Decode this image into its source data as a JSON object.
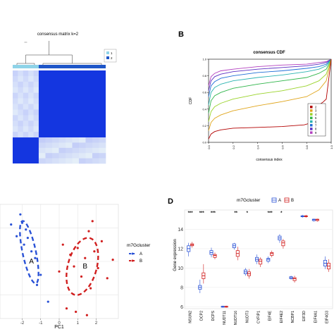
{
  "panels": {
    "b_label": "B",
    "d_label": "D"
  },
  "chart_data": [
    {
      "id": "A",
      "type": "heatmap",
      "title": "consensus matrix k=2",
      "legend": {
        "entries": [
          "1",
          "2"
        ],
        "colors": [
          "#8ed3e8",
          "#1e56c8"
        ],
        "placement": "top-right"
      },
      "clusters": [
        {
          "name": "1",
          "color": "#8ed3e8"
        },
        {
          "name": "2",
          "color": "#1e56c8"
        }
      ],
      "colors": {
        "high": "#1436e0",
        "low": "#ffffff",
        "mid": "#c9d3f0"
      }
    },
    {
      "id": "B",
      "type": "line",
      "title": "consensus CDF",
      "xlabel": "consensus index",
      "ylabel": "CDF",
      "xlim": [
        0,
        1
      ],
      "ylim": [
        0,
        1
      ],
      "x_ticks": [
        "0.0",
        "0.2",
        "0.4",
        "0.6",
        "0.8",
        "1.0"
      ],
      "y_ticks": [
        "0.0",
        "0.2",
        "0.4",
        "0.6",
        "0.8",
        "1.0"
      ],
      "legend": {
        "placement": "bottom-right"
      },
      "series": [
        {
          "name": "2",
          "color": "#b30000",
          "x": [
            0,
            0.02,
            0.05,
            0.1,
            0.2,
            0.4,
            0.6,
            0.78,
            0.85,
            0.88,
            0.9,
            0.93,
            0.96,
            1.0
          ],
          "y": [
            0.04,
            0.1,
            0.13,
            0.15,
            0.17,
            0.18,
            0.19,
            0.21,
            0.24,
            0.44,
            0.45,
            0.48,
            0.52,
            1.0
          ]
        },
        {
          "name": "3",
          "color": "#e0a51b",
          "x": [
            0,
            0.02,
            0.05,
            0.1,
            0.2,
            0.4,
            0.6,
            0.8,
            0.9,
            0.96,
            1.0
          ],
          "y": [
            0.14,
            0.24,
            0.29,
            0.33,
            0.38,
            0.44,
            0.49,
            0.55,
            0.63,
            0.74,
            1.0
          ]
        },
        {
          "name": "4",
          "color": "#9ad32a",
          "x": [
            0,
            0.02,
            0.05,
            0.1,
            0.2,
            0.4,
            0.6,
            0.8,
            0.9,
            0.96,
            1.0
          ],
          "y": [
            0.25,
            0.37,
            0.43,
            0.47,
            0.52,
            0.58,
            0.62,
            0.68,
            0.74,
            0.82,
            1.0
          ]
        },
        {
          "name": "5",
          "color": "#2fb54a",
          "x": [
            0,
            0.02,
            0.05,
            0.1,
            0.2,
            0.4,
            0.6,
            0.8,
            0.9,
            0.96,
            1.0
          ],
          "y": [
            0.35,
            0.5,
            0.56,
            0.6,
            0.65,
            0.7,
            0.74,
            0.78,
            0.83,
            0.88,
            1.0
          ]
        },
        {
          "name": "6",
          "color": "#2ab3b0",
          "x": [
            0,
            0.02,
            0.05,
            0.1,
            0.2,
            0.4,
            0.6,
            0.8,
            0.9,
            0.96,
            1.0
          ],
          "y": [
            0.45,
            0.6,
            0.66,
            0.7,
            0.74,
            0.78,
            0.81,
            0.85,
            0.88,
            0.92,
            1.0
          ]
        },
        {
          "name": "7",
          "color": "#1f6fd6",
          "x": [
            0,
            0.02,
            0.05,
            0.1,
            0.2,
            0.4,
            0.6,
            0.8,
            0.9,
            0.96,
            1.0
          ],
          "y": [
            0.55,
            0.68,
            0.73,
            0.77,
            0.8,
            0.84,
            0.86,
            0.89,
            0.91,
            0.94,
            1.0
          ]
        },
        {
          "name": "8",
          "color": "#5b2fc2",
          "x": [
            0,
            0.02,
            0.05,
            0.1,
            0.2,
            0.4,
            0.6,
            0.8,
            0.9,
            0.96,
            1.0
          ],
          "y": [
            0.62,
            0.74,
            0.79,
            0.82,
            0.85,
            0.88,
            0.9,
            0.92,
            0.94,
            0.96,
            1.0
          ]
        },
        {
          "name": "9",
          "color": "#b23fbf",
          "x": [
            0,
            0.02,
            0.05,
            0.1,
            0.2,
            0.4,
            0.6,
            0.8,
            0.9,
            0.96,
            1.0
          ],
          "y": [
            0.68,
            0.79,
            0.83,
            0.86,
            0.88,
            0.91,
            0.93,
            0.94,
            0.96,
            0.97,
            1.0
          ]
        }
      ]
    },
    {
      "id": "C",
      "type": "scatter",
      "xlabel": "PC1",
      "ylabel": "",
      "xlim": [
        -3.2,
        3.2
      ],
      "ylim": [
        -3.4,
        3.4
      ],
      "x_ticks": [
        -2,
        -1,
        0,
        1,
        2
      ],
      "legend": {
        "title": "m7Gcluster",
        "placement": "right"
      },
      "series": [
        {
          "name": "A",
          "color": "#2a52d6",
          "points": [
            [
              -2.6,
              2.2
            ],
            [
              -2.1,
              2.8
            ],
            [
              -2.3,
              1.5
            ],
            [
              -1.8,
              1.9
            ],
            [
              -1.9,
              1.0
            ],
            [
              -1.5,
              0.6
            ],
            [
              -1.3,
              0.2
            ],
            [
              -1.0,
              -0.8
            ],
            [
              -1.2,
              -1.4
            ],
            [
              -0.6,
              -2.4
            ],
            [
              -2.0,
              2.3
            ],
            [
              -1.7,
              1.4
            ]
          ],
          "ellipse": {
            "cx": -1.62,
            "cy": 0.55,
            "rx": 0.36,
            "ry": 1.9,
            "angle": -12
          },
          "centroid": [
            -1.5,
            0.0
          ]
        },
        {
          "name": "B",
          "color": "#d11f1f",
          "points": [
            [
              0.2,
              1.0
            ],
            [
              0.6,
              0.4
            ],
            [
              0.8,
              -0.3
            ],
            [
              1.0,
              0.8
            ],
            [
              1.2,
              -0.9
            ],
            [
              1.4,
              0.2
            ],
            [
              1.6,
              1.8
            ],
            [
              1.7,
              -1.6
            ],
            [
              1.9,
              0.6
            ],
            [
              2.1,
              -0.4
            ],
            [
              2.3,
              1.2
            ],
            [
              2.6,
              -1.0
            ],
            [
              0.4,
              -2.8
            ],
            [
              2.9,
              0.1
            ],
            [
              0.9,
              -3.0
            ],
            [
              1.5,
              -3.2
            ],
            [
              0.0,
              -0.6
            ],
            [
              1.8,
              2.4
            ]
          ],
          "ellipse": {
            "cx": 1.25,
            "cy": -0.3,
            "rx": 0.78,
            "ry": 1.75,
            "angle": 15
          },
          "centroid": [
            1.4,
            -0.3
          ]
        }
      ]
    },
    {
      "id": "D",
      "type": "box",
      "ylabel": "Gene expression",
      "ylim": [
        5.8,
        16.0
      ],
      "y_ticks": [
        6,
        8,
        10,
        12,
        14
      ],
      "legend": {
        "title": "m7Gcluster",
        "entries": [
          "A",
          "B"
        ],
        "colors": [
          "#2a52d6",
          "#d11f1f"
        ],
        "placement": "top"
      },
      "categories": [
        "NSUN2",
        "DCP2",
        "DCPS",
        "NUDT11",
        "NUDT16",
        "NUDT3",
        "CYFIP1",
        "EIF4E",
        "EIF4E2",
        "NCBP1",
        "EIF3D",
        "EIF4A1",
        "EIF4G3"
      ],
      "significance": [
        "***",
        "***",
        "***",
        "",
        "**",
        "*",
        "",
        "***",
        "*",
        "",
        "",
        "",
        ""
      ],
      "groups": {
        "A": [
          {
            "min": 11.2,
            "q1": 11.7,
            "median": 12.0,
            "q3": 12.3,
            "max": 12.6
          },
          {
            "min": 7.4,
            "q1": 7.8,
            "median": 8.0,
            "q3": 8.2,
            "max": 8.8
          },
          {
            "min": 11.1,
            "q1": 11.4,
            "median": 11.6,
            "q3": 11.8,
            "max": 12.1
          },
          {
            "min": 5.9,
            "q1": 5.95,
            "median": 6.0,
            "q3": 6.05,
            "max": 6.1
          },
          {
            "min": 11.9,
            "q1": 12.1,
            "median": 12.3,
            "q3": 12.5,
            "max": 12.6
          },
          {
            "min": 9.2,
            "q1": 9.4,
            "median": 9.6,
            "q3": 9.8,
            "max": 10.0
          },
          {
            "min": 10.4,
            "q1": 10.7,
            "median": 10.9,
            "q3": 11.1,
            "max": 11.4
          },
          {
            "min": 10.5,
            "q1": 10.7,
            "median": 10.9,
            "q3": 11.0,
            "max": 11.2
          },
          {
            "min": 12.6,
            "q1": 12.9,
            "median": 13.1,
            "q3": 13.3,
            "max": 13.5
          },
          {
            "min": 8.8,
            "q1": 8.9,
            "median": 9.0,
            "q3": 9.1,
            "max": 9.2
          },
          {
            "min": 15.2,
            "q1": 15.3,
            "median": 15.35,
            "q3": 15.4,
            "max": 15.5
          },
          {
            "min": 14.8,
            "q1": 14.9,
            "median": 15.0,
            "q3": 15.05,
            "max": 15.1
          },
          {
            "min": 9.9,
            "q1": 10.2,
            "median": 10.5,
            "q3": 10.8,
            "max": 11.2
          }
        ],
        "B": [
          {
            "min": 12.1,
            "q1": 12.3,
            "median": 12.4,
            "q3": 12.5,
            "max": 12.7
          },
          {
            "min": 8.4,
            "q1": 8.9,
            "median": 9.2,
            "q3": 9.5,
            "max": 10.4
          },
          {
            "min": 10.9,
            "q1": 11.1,
            "median": 11.3,
            "q3": 11.4,
            "max": 11.6
          },
          {
            "min": 5.9,
            "q1": 5.95,
            "median": 6.0,
            "q3": 6.05,
            "max": 6.1
          },
          {
            "min": 10.8,
            "q1": 11.2,
            "median": 11.5,
            "q3": 11.8,
            "max": 12.2
          },
          {
            "min": 8.9,
            "q1": 9.2,
            "median": 9.4,
            "q3": 9.6,
            "max": 9.9
          },
          {
            "min": 10.1,
            "q1": 10.4,
            "median": 10.7,
            "q3": 10.9,
            "max": 11.1
          },
          {
            "min": 11.1,
            "q1": 11.3,
            "median": 11.5,
            "q3": 11.6,
            "max": 11.8
          },
          {
            "min": 12.0,
            "q1": 12.3,
            "median": 12.6,
            "q3": 12.8,
            "max": 13.0
          },
          {
            "min": 8.5,
            "q1": 8.7,
            "median": 8.9,
            "q3": 9.0,
            "max": 9.2
          },
          {
            "min": 15.2,
            "q1": 15.3,
            "median": 15.35,
            "q3": 15.4,
            "max": 15.5
          },
          {
            "min": 14.8,
            "q1": 14.9,
            "median": 15.0,
            "q3": 15.05,
            "max": 15.1
          },
          {
            "min": 9.6,
            "q1": 9.9,
            "median": 10.2,
            "q3": 10.5,
            "max": 10.9
          }
        ]
      }
    }
  ]
}
